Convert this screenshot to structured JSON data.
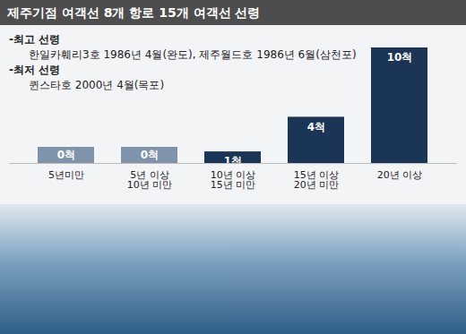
{
  "chart_data": {
    "type": "bar",
    "title": "제주기점 여객선 8개 항로 15개 여객선 선령",
    "annotations": [
      {
        "heading": "-최고 선령",
        "text": "한일카훼리3호 1986년 4월(완도), 제주월드호 1986년 6월(삼천포)"
      },
      {
        "heading": "-최저 선령",
        "text": "퀸스타호 2000년 4월(목포)"
      }
    ],
    "categories": [
      "5년미만",
      "5년 이상\n10년 미만",
      "10년 이상\n15년 미만",
      "15년 이상\n20년 미만",
      "20년 이상"
    ],
    "values": [
      0,
      0,
      1,
      4,
      10
    ],
    "value_labels": [
      "0척",
      "0척",
      "1척",
      "4척",
      "10척"
    ],
    "data_labels": true,
    "tick_labels": "x",
    "color": "#1b3556"
  }
}
